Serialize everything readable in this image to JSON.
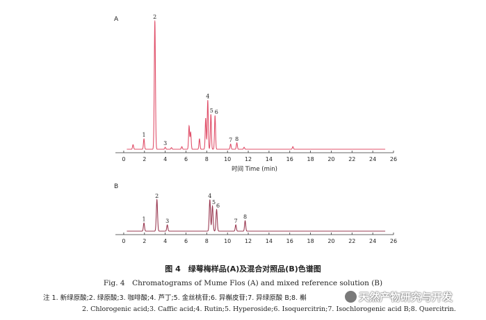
{
  "chart_data": [
    {
      "type": "line",
      "panel_label": "A",
      "color": "#e0506a",
      "xlabel": "时间 Time (min)",
      "x_ticks": [
        0,
        2,
        4,
        6,
        8,
        10,
        12,
        14,
        16,
        18,
        20,
        22,
        24,
        26
      ],
      "xlim": [
        -0.8,
        26
      ],
      "ylim": [
        0,
        1
      ],
      "peaks": [
        {
          "rt": 0.9,
          "h": 0.035
        },
        {
          "rt": 1.95,
          "h": 0.08,
          "label": "1"
        },
        {
          "rt": 3.0,
          "h": 1.0,
          "label": "2"
        },
        {
          "rt": 4.0,
          "h": 0.015,
          "label": "3"
        },
        {
          "rt": 4.6,
          "h": 0.012
        },
        {
          "rt": 5.6,
          "h": 0.02
        },
        {
          "rt": 6.3,
          "h": 0.18
        },
        {
          "rt": 6.45,
          "h": 0.13
        },
        {
          "rt": 7.3,
          "h": 0.08
        },
        {
          "rt": 7.9,
          "h": 0.24
        },
        {
          "rt": 8.1,
          "h": 0.38,
          "label": "4"
        },
        {
          "rt": 8.4,
          "h": 0.27,
          "label": "5"
        },
        {
          "rt": 8.8,
          "h": 0.26,
          "label": "6"
        },
        {
          "rt": 10.3,
          "h": 0.04,
          "label": "7"
        },
        {
          "rt": 10.9,
          "h": 0.05,
          "label": "8"
        },
        {
          "rt": 11.6,
          "h": 0.015
        },
        {
          "rt": 16.3,
          "h": 0.02
        }
      ]
    },
    {
      "type": "line",
      "panel_label": "B",
      "color": "#9a3a52",
      "x_ticks": [
        0,
        2,
        4,
        6,
        8,
        10,
        12,
        14,
        16,
        18,
        20,
        22,
        24,
        26
      ],
      "xlim": [
        -0.8,
        26
      ],
      "ylim": [
        0,
        1
      ],
      "peaks": [
        {
          "rt": 1.95,
          "h": 0.26,
          "label": "1"
        },
        {
          "rt": 3.2,
          "h": 1.0,
          "label": "2"
        },
        {
          "rt": 4.2,
          "h": 0.2,
          "label": "3"
        },
        {
          "rt": 8.3,
          "h": 1.0,
          "label": "4"
        },
        {
          "rt": 8.55,
          "h": 0.8,
          "label": "5"
        },
        {
          "rt": 8.95,
          "h": 0.69,
          "label": "6"
        },
        {
          "rt": 10.8,
          "h": 0.2,
          "label": "7"
        },
        {
          "rt": 11.7,
          "h": 0.33,
          "label": "8"
        }
      ]
    }
  ],
  "caption": {
    "cn": "图 4　绿萼梅样品(A)及混合对照品(B)色谱图",
    "en": "Fig. 4　Chromatograms of Mume Flos (A) and mixed reference solution (B)",
    "note_line1": "注 1. 新绿原酸;2. 绿原酸;3. 咖啡酸;4. 芦丁;5. 金丝桃苷;6. 异槲皮苷;7. 异绿原酸 B;8. 槲",
    "note_line2": "2. Chlorogenic acid;3. Caffic acid;4. Rutin;5. Hyperoside;6. Isoquercitrin;7. Isochlorogenic acid B;8. Quercitrin."
  },
  "watermark": {
    "text": "天然产物研究与开发",
    "icon": "wechat-icon"
  }
}
